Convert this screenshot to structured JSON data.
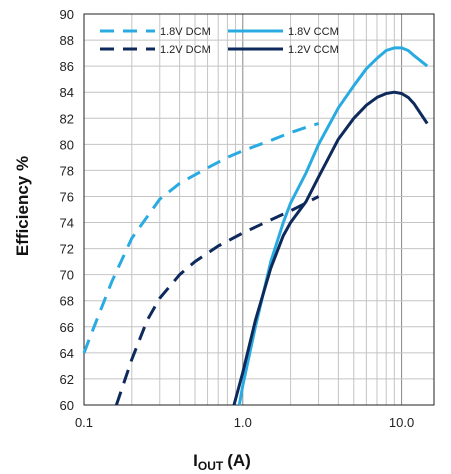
{
  "chart_data": {
    "type": "line",
    "title": "",
    "xlabel": "I",
    "xlabel_sub": "OUT",
    "xlabel_unit": "(A)",
    "ylabel": "Efficiency %",
    "x_scale": "log",
    "xlim": [
      0.1,
      16
    ],
    "ylim": [
      60,
      90
    ],
    "x_tick_values": [
      0.1,
      1,
      10
    ],
    "x_tick_labels": [
      "0.1",
      "1.0",
      "10.0"
    ],
    "y_ticks": [
      60,
      62,
      64,
      66,
      68,
      70,
      72,
      74,
      76,
      78,
      80,
      82,
      84,
      86,
      88,
      90
    ],
    "grid": true,
    "legend_position": "top-left",
    "series": [
      {
        "name": "1.8V DCM",
        "color": "#29ABE2",
        "dash": true,
        "x": [
          0.1,
          0.12,
          0.15,
          0.2,
          0.3,
          0.4,
          0.6,
          0.8,
          1.0,
          1.5,
          2.0,
          2.5,
          3.0
        ],
        "y": [
          64.0,
          66.5,
          69.5,
          72.8,
          75.8,
          77.0,
          78.2,
          79.0,
          79.5,
          80.3,
          80.9,
          81.3,
          81.6
        ]
      },
      {
        "name": "1.2V DCM",
        "color": "#0E2A5C",
        "dash": true,
        "x": [
          0.16,
          0.2,
          0.25,
          0.3,
          0.4,
          0.5,
          0.7,
          1.0,
          1.5,
          2.0,
          2.5,
          3.0
        ],
        "y": [
          60.0,
          63.5,
          66.5,
          68.2,
          70.0,
          71.0,
          72.2,
          73.2,
          74.2,
          74.9,
          75.5,
          76.0
        ]
      },
      {
        "name": "1.8V CCM",
        "color": "#29ABE2",
        "dash": false,
        "x": [
          0.95,
          1.0,
          1.2,
          1.5,
          1.8,
          2.0,
          2.5,
          3.0,
          4.0,
          5.0,
          6.0,
          7.0,
          8.0,
          9.0,
          10.0,
          11.0,
          12.0,
          14.5
        ],
        "y": [
          60.0,
          61.5,
          66.0,
          71.0,
          74.0,
          75.5,
          77.8,
          80.0,
          82.8,
          84.5,
          85.8,
          86.6,
          87.2,
          87.4,
          87.4,
          87.2,
          86.8,
          86.0
        ]
      },
      {
        "name": "1.2V CCM",
        "color": "#0E2A5C",
        "dash": false,
        "x": [
          0.88,
          1.0,
          1.2,
          1.5,
          1.8,
          2.0,
          2.5,
          3.0,
          4.0,
          5.0,
          6.0,
          7.0,
          8.0,
          9.0,
          10.0,
          11.0,
          12.0,
          14.5
        ],
        "y": [
          60.0,
          62.5,
          66.5,
          70.5,
          73.0,
          74.0,
          75.6,
          77.5,
          80.4,
          82.0,
          83.0,
          83.6,
          83.9,
          84.0,
          83.9,
          83.6,
          83.1,
          81.6
        ]
      }
    ]
  }
}
